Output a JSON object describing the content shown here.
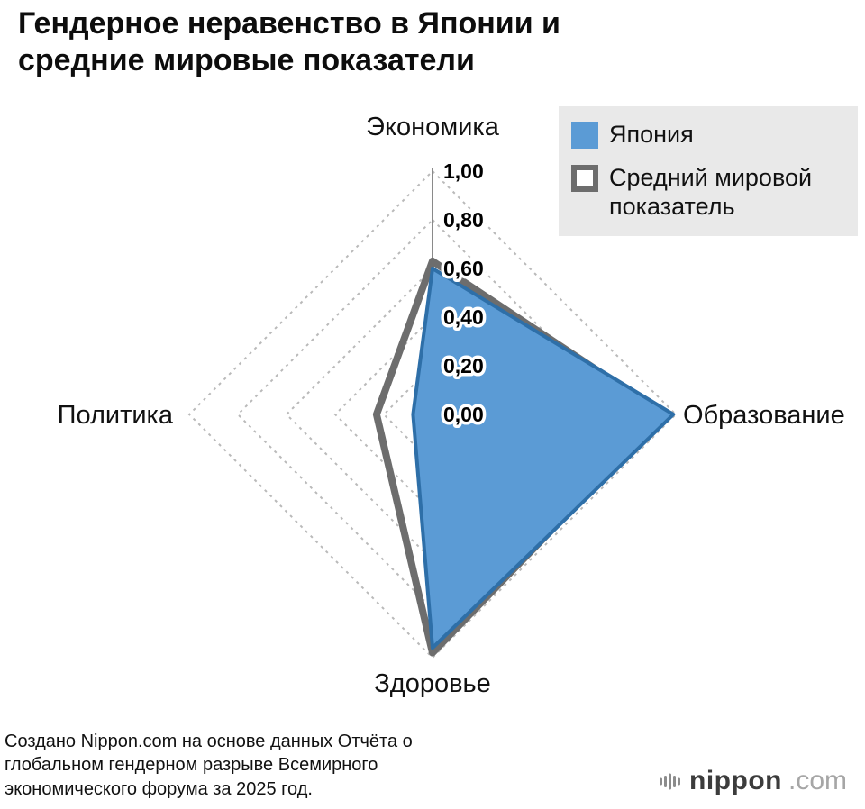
{
  "title": "Гендерное неравенство в Японии и\nсредние мировые показатели",
  "legend": {
    "items": [
      {
        "label": "Япония"
      },
      {
        "label": "Средний мировой показатель"
      }
    ]
  },
  "chart_data": {
    "type": "radar",
    "categories": [
      "Экономика",
      "Образование",
      "Здоровье",
      "Политика"
    ],
    "series": [
      {
        "name": "Япония",
        "values": [
          0.6,
          0.99,
          0.96,
          0.08
        ],
        "fill": "#5b9bd5",
        "stroke": "#2e6fa8"
      },
      {
        "name": "Средний мировой показатель",
        "values": [
          0.63,
          0.95,
          0.98,
          0.23
        ],
        "fill": "none",
        "stroke": "#6d6d6d"
      }
    ],
    "ticks": [
      "0,00",
      "0,20",
      "0,40",
      "0,60",
      "0,80",
      "1,00"
    ],
    "rmin": 0.0,
    "rmax": 1.0,
    "grid": "dashed-diamond",
    "legend_position": "top-right"
  },
  "source": "Создано Nippon.com на основе данных Отчёта о\nглобальном гендерном разрыве Всемирного\nэкономического форума за 2025 год.",
  "logo": {
    "brand": "nippon",
    "tld": ".com"
  }
}
